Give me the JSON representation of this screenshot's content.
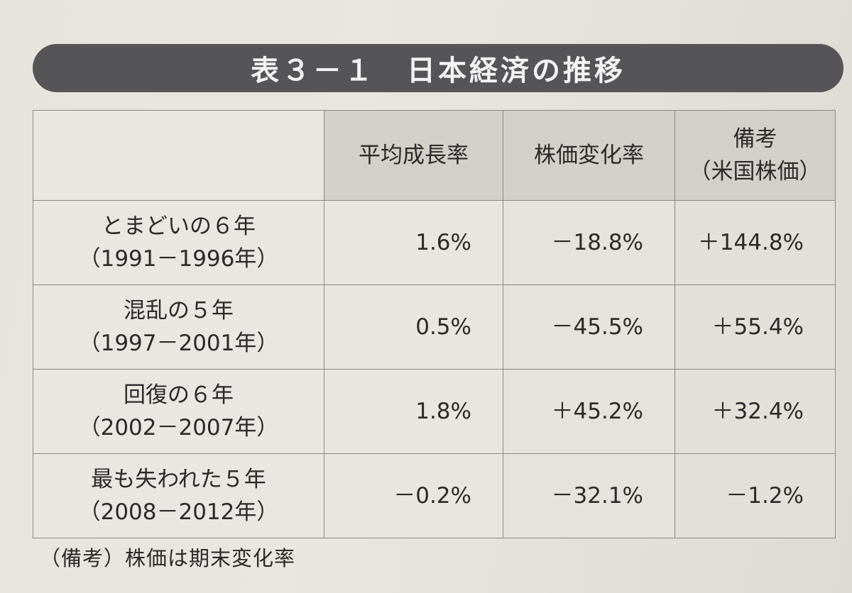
{
  "title": "表３－１　日本経済の推移",
  "table": {
    "headers": [
      {
        "lines": [
          ""
        ]
      },
      {
        "lines": [
          "平均成長率"
        ]
      },
      {
        "lines": [
          "株価変化率"
        ]
      },
      {
        "lines": [
          "備考",
          "（米国株価）"
        ]
      }
    ],
    "rows": [
      {
        "label": [
          "とまどいの６年",
          "（1991－1996年）"
        ],
        "growth": "1.6%",
        "stock": "－18.8%",
        "us_stock": "＋144.8%"
      },
      {
        "label": [
          "混乱の５年",
          "（1997－2001年）"
        ],
        "growth": "0.5%",
        "stock": "－45.5%",
        "us_stock": "＋55.4%"
      },
      {
        "label": [
          "回復の６年",
          "（2002－2007年）"
        ],
        "growth": "1.8%",
        "stock": "＋45.2%",
        "us_stock": "＋32.4%"
      },
      {
        "label": [
          "最も失われた５年",
          "（2008－2012年）"
        ],
        "growth": "－0.2%",
        "stock": "－32.1%",
        "us_stock": "－1.2%"
      }
    ]
  },
  "note": "（備考）株価は期末変化率"
}
